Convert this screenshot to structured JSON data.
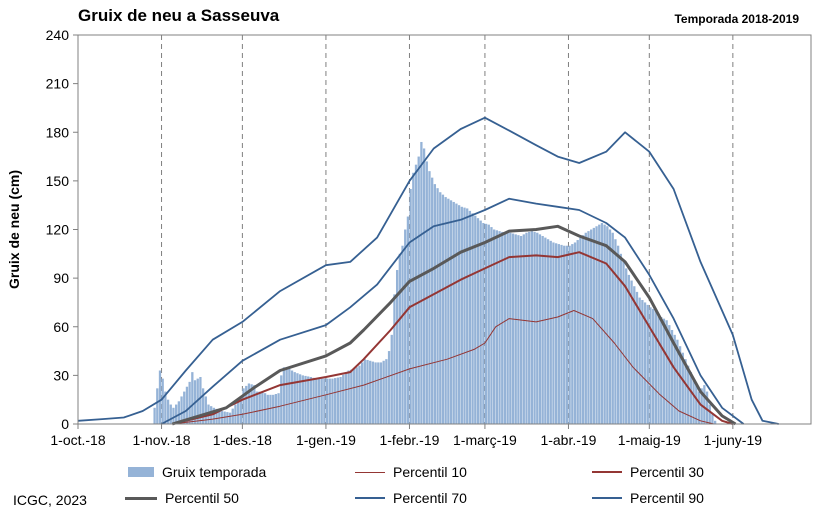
{
  "chart_data": {
    "type": "bar",
    "title": "Gruix de neu a Sasseuva",
    "subtitle": "Temporada 2018-2019",
    "ylabel": "Gruix de neu (cm)",
    "xlabel": "",
    "ylim": [
      0,
      240
    ],
    "yticks": [
      0,
      30,
      60,
      90,
      120,
      150,
      180,
      210,
      240
    ],
    "xlim": [
      "2018-10-01",
      "2019-06-30"
    ],
    "xticks": [
      {
        "date": "2018-10-01",
        "label": "1-oct.-18"
      },
      {
        "date": "2018-11-01",
        "label": "1-nov.-18"
      },
      {
        "date": "2018-12-01",
        "label": "1-des.-18"
      },
      {
        "date": "2019-01-01",
        "label": "1-gen.-19"
      },
      {
        "date": "2019-02-01",
        "label": "1-febr.-19"
      },
      {
        "date": "2019-03-01",
        "label": "1-març-19"
      },
      {
        "date": "2019-04-01",
        "label": "1-abr.-19"
      },
      {
        "date": "2019-05-01",
        "label": "1-maig-19"
      },
      {
        "date": "2019-06-01",
        "label": "1-juny-19"
      }
    ],
    "grid": "vertical dashed",
    "bars": {
      "name": "Gruix temporada",
      "color": "#95b3d7",
      "points": [
        [
          "2018-10-28",
          0
        ],
        [
          "2018-10-29",
          10
        ],
        [
          "2018-10-30",
          22
        ],
        [
          "2018-10-31",
          33
        ],
        [
          "2018-11-01",
          28
        ],
        [
          "2018-11-02",
          20
        ],
        [
          "2018-11-03",
          15
        ],
        [
          "2018-11-04",
          12
        ],
        [
          "2018-11-05",
          10
        ],
        [
          "2018-11-07",
          14
        ],
        [
          "2018-11-09",
          20
        ],
        [
          "2018-11-11",
          26
        ],
        [
          "2018-11-12",
          32
        ],
        [
          "2018-11-13",
          27
        ],
        [
          "2018-11-15",
          29
        ],
        [
          "2018-11-16",
          22
        ],
        [
          "2018-11-18",
          12
        ],
        [
          "2018-11-20",
          10
        ],
        [
          "2018-11-23",
          8
        ],
        [
          "2018-11-26",
          7
        ],
        [
          "2018-11-28",
          12
        ],
        [
          "2018-11-30",
          16
        ],
        [
          "2018-12-01",
          22
        ],
        [
          "2018-12-03",
          25
        ],
        [
          "2018-12-05",
          24
        ],
        [
          "2018-12-06",
          20
        ],
        [
          "2018-12-08",
          20
        ],
        [
          "2018-12-10",
          18
        ],
        [
          "2018-12-12",
          18
        ],
        [
          "2018-12-14",
          19
        ],
        [
          "2018-12-15",
          30
        ],
        [
          "2018-12-16",
          35
        ],
        [
          "2018-12-18",
          34
        ],
        [
          "2018-12-20",
          32
        ],
        [
          "2018-12-23",
          30
        ],
        [
          "2018-12-26",
          29
        ],
        [
          "2018-12-28",
          28
        ],
        [
          "2018-12-31",
          28
        ],
        [
          "2019-01-03",
          28
        ],
        [
          "2019-01-06",
          29
        ],
        [
          "2019-01-09",
          33
        ],
        [
          "2019-01-11",
          34
        ],
        [
          "2019-01-13",
          36
        ],
        [
          "2019-01-15",
          40
        ],
        [
          "2019-01-17",
          39
        ],
        [
          "2019-01-19",
          38
        ],
        [
          "2019-01-21",
          38
        ],
        [
          "2019-01-23",
          40
        ],
        [
          "2019-01-24",
          45
        ],
        [
          "2019-01-25",
          55
        ],
        [
          "2019-01-26",
          80
        ],
        [
          "2019-01-27",
          95
        ],
        [
          "2019-01-28",
          105
        ],
        [
          "2019-01-29",
          110
        ],
        [
          "2019-01-30",
          120
        ],
        [
          "2019-01-31",
          128
        ],
        [
          "2019-02-01",
          145
        ],
        [
          "2019-02-02",
          155
        ],
        [
          "2019-02-03",
          160
        ],
        [
          "2019-02-04",
          165
        ],
        [
          "2019-02-05",
          174
        ],
        [
          "2019-02-06",
          170
        ],
        [
          "2019-02-07",
          162
        ],
        [
          "2019-02-08",
          156
        ],
        [
          "2019-02-09",
          152
        ],
        [
          "2019-02-10",
          148
        ],
        [
          "2019-02-12",
          143
        ],
        [
          "2019-02-14",
          140
        ],
        [
          "2019-02-16",
          138
        ],
        [
          "2019-02-18",
          136
        ],
        [
          "2019-02-20",
          134
        ],
        [
          "2019-02-22",
          133
        ],
        [
          "2019-02-24",
          130
        ],
        [
          "2019-02-26",
          127
        ],
        [
          "2019-02-28",
          124
        ],
        [
          "2019-03-02",
          123
        ],
        [
          "2019-03-04",
          120
        ],
        [
          "2019-03-06",
          119
        ],
        [
          "2019-03-08",
          118
        ],
        [
          "2019-03-10",
          118
        ],
        [
          "2019-03-12",
          117
        ],
        [
          "2019-03-14",
          116
        ],
        [
          "2019-03-16",
          118
        ],
        [
          "2019-03-18",
          119
        ],
        [
          "2019-03-20",
          118
        ],
        [
          "2019-03-22",
          116
        ],
        [
          "2019-03-24",
          114
        ],
        [
          "2019-03-26",
          112
        ],
        [
          "2019-03-28",
          111
        ],
        [
          "2019-03-30",
          110
        ],
        [
          "2019-04-01",
          110
        ],
        [
          "2019-04-03",
          112
        ],
        [
          "2019-04-05",
          115
        ],
        [
          "2019-04-07",
          118
        ],
        [
          "2019-04-09",
          120
        ],
        [
          "2019-04-11",
          122
        ],
        [
          "2019-04-13",
          124
        ],
        [
          "2019-04-15",
          122
        ],
        [
          "2019-04-17",
          118
        ],
        [
          "2019-04-19",
          110
        ],
        [
          "2019-04-21",
          100
        ],
        [
          "2019-04-23",
          92
        ],
        [
          "2019-04-25",
          85
        ],
        [
          "2019-04-27",
          78
        ],
        [
          "2019-04-29",
          75
        ],
        [
          "2019-05-01",
          72
        ],
        [
          "2019-05-03",
          70
        ],
        [
          "2019-05-05",
          66
        ],
        [
          "2019-05-07",
          64
        ],
        [
          "2019-05-09",
          58
        ],
        [
          "2019-05-11",
          52
        ],
        [
          "2019-05-13",
          44
        ],
        [
          "2019-05-15",
          36
        ],
        [
          "2019-05-17",
          28
        ],
        [
          "2019-05-19",
          20
        ],
        [
          "2019-05-20",
          22
        ],
        [
          "2019-05-21",
          24
        ],
        [
          "2019-05-22",
          20
        ],
        [
          "2019-05-23",
          12
        ],
        [
          "2019-05-24",
          6
        ],
        [
          "2019-05-25",
          2
        ],
        [
          "2019-05-26",
          0
        ]
      ]
    },
    "series": [
      {
        "name": "Percentil 10",
        "color": "#943634",
        "width": 1,
        "points": [
          [
            "2018-11-05",
            0
          ],
          [
            "2018-11-20",
            3
          ],
          [
            "2018-12-01",
            6
          ],
          [
            "2018-12-15",
            11
          ],
          [
            "2019-01-01",
            18
          ],
          [
            "2019-01-15",
            24
          ],
          [
            "2019-02-01",
            34
          ],
          [
            "2019-02-15",
            40
          ],
          [
            "2019-02-25",
            46
          ],
          [
            "2019-03-01",
            50
          ],
          [
            "2019-03-05",
            60
          ],
          [
            "2019-03-10",
            65
          ],
          [
            "2019-03-20",
            63
          ],
          [
            "2019-03-28",
            66
          ],
          [
            "2019-04-03",
            70
          ],
          [
            "2019-04-10",
            65
          ],
          [
            "2019-04-18",
            50
          ],
          [
            "2019-04-25",
            35
          ],
          [
            "2019-05-05",
            18
          ],
          [
            "2019-05-12",
            8
          ],
          [
            "2019-05-20",
            2
          ],
          [
            "2019-05-25",
            0
          ]
        ]
      },
      {
        "name": "Percentil 30",
        "color": "#943634",
        "width": 2,
        "points": [
          [
            "2018-11-05",
            0
          ],
          [
            "2018-11-20",
            6
          ],
          [
            "2018-12-01",
            15
          ],
          [
            "2018-12-15",
            24
          ],
          [
            "2019-01-01",
            29
          ],
          [
            "2019-01-10",
            32
          ],
          [
            "2019-01-15",
            40
          ],
          [
            "2019-01-25",
            58
          ],
          [
            "2019-02-01",
            72
          ],
          [
            "2019-02-10",
            80
          ],
          [
            "2019-02-20",
            89
          ],
          [
            "2019-03-01",
            96
          ],
          [
            "2019-03-10",
            103
          ],
          [
            "2019-03-20",
            104
          ],
          [
            "2019-03-28",
            103
          ],
          [
            "2019-04-05",
            106
          ],
          [
            "2019-04-15",
            99
          ],
          [
            "2019-04-22",
            85
          ],
          [
            "2019-05-01",
            60
          ],
          [
            "2019-05-10",
            35
          ],
          [
            "2019-05-20",
            12
          ],
          [
            "2019-05-28",
            2
          ],
          [
            "2019-06-01",
            0
          ]
        ]
      },
      {
        "name": "Percentil 50",
        "color": "#595959",
        "width": 3,
        "points": [
          [
            "2018-11-05",
            0
          ],
          [
            "2018-11-15",
            5
          ],
          [
            "2018-11-25",
            10
          ],
          [
            "2018-12-05",
            22
          ],
          [
            "2018-12-15",
            33
          ],
          [
            "2019-01-01",
            42
          ],
          [
            "2019-01-10",
            50
          ],
          [
            "2019-01-15",
            58
          ],
          [
            "2019-01-25",
            75
          ],
          [
            "2019-02-01",
            88
          ],
          [
            "2019-02-10",
            96
          ],
          [
            "2019-02-20",
            106
          ],
          [
            "2019-03-01",
            112
          ],
          [
            "2019-03-10",
            119
          ],
          [
            "2019-03-20",
            120
          ],
          [
            "2019-03-28",
            122
          ],
          [
            "2019-04-05",
            116
          ],
          [
            "2019-04-15",
            110
          ],
          [
            "2019-04-22",
            100
          ],
          [
            "2019-05-01",
            78
          ],
          [
            "2019-05-10",
            50
          ],
          [
            "2019-05-20",
            20
          ],
          [
            "2019-05-28",
            5
          ],
          [
            "2019-06-02",
            0
          ]
        ]
      },
      {
        "name": "Percentil 70",
        "color": "#366092",
        "width": 1.8,
        "points": [
          [
            "2018-11-01",
            0
          ],
          [
            "2018-11-10",
            8
          ],
          [
            "2018-11-20",
            23
          ],
          [
            "2018-12-01",
            39
          ],
          [
            "2018-12-15",
            52
          ],
          [
            "2019-01-01",
            61
          ],
          [
            "2019-01-10",
            72
          ],
          [
            "2019-01-20",
            86
          ],
          [
            "2019-02-01",
            112
          ],
          [
            "2019-02-10",
            122
          ],
          [
            "2019-02-20",
            126
          ],
          [
            "2019-03-01",
            132
          ],
          [
            "2019-03-10",
            139
          ],
          [
            "2019-03-20",
            136
          ],
          [
            "2019-03-28",
            134
          ],
          [
            "2019-04-05",
            132
          ],
          [
            "2019-04-15",
            124
          ],
          [
            "2019-04-22",
            115
          ],
          [
            "2019-05-01",
            92
          ],
          [
            "2019-05-10",
            65
          ],
          [
            "2019-05-20",
            30
          ],
          [
            "2019-05-28",
            10
          ],
          [
            "2019-06-05",
            0
          ]
        ]
      },
      {
        "name": "Percentil 90",
        "color": "#366092",
        "width": 1.8,
        "points": [
          [
            "2018-10-01",
            2
          ],
          [
            "2018-10-10",
            3
          ],
          [
            "2018-10-18",
            4
          ],
          [
            "2018-10-25",
            8
          ],
          [
            "2018-11-01",
            15
          ],
          [
            "2018-11-10",
            33
          ],
          [
            "2018-11-20",
            52
          ],
          [
            "2018-12-01",
            63
          ],
          [
            "2018-12-15",
            82
          ],
          [
            "2019-01-01",
            98
          ],
          [
            "2019-01-10",
            100
          ],
          [
            "2019-01-20",
            115
          ],
          [
            "2019-02-01",
            150
          ],
          [
            "2019-02-10",
            170
          ],
          [
            "2019-02-20",
            182
          ],
          [
            "2019-03-01",
            189
          ],
          [
            "2019-03-10",
            181
          ],
          [
            "2019-03-20",
            172
          ],
          [
            "2019-03-28",
            165
          ],
          [
            "2019-04-05",
            161
          ],
          [
            "2019-04-15",
            168
          ],
          [
            "2019-04-22",
            180
          ],
          [
            "2019-05-01",
            168
          ],
          [
            "2019-05-10",
            145
          ],
          [
            "2019-05-20",
            100
          ],
          [
            "2019-06-01",
            55
          ],
          [
            "2019-06-08",
            15
          ],
          [
            "2019-06-12",
            2
          ],
          [
            "2019-06-18",
            0
          ]
        ]
      }
    ]
  },
  "legend": {
    "bars": "Gruix temporada",
    "p10": "Percentil 10",
    "p30": "Percentil 30",
    "p50": "Percentil 50",
    "p70": "Percentil 70",
    "p90": "Percentil 90"
  },
  "footer": "ICGC, 2023"
}
